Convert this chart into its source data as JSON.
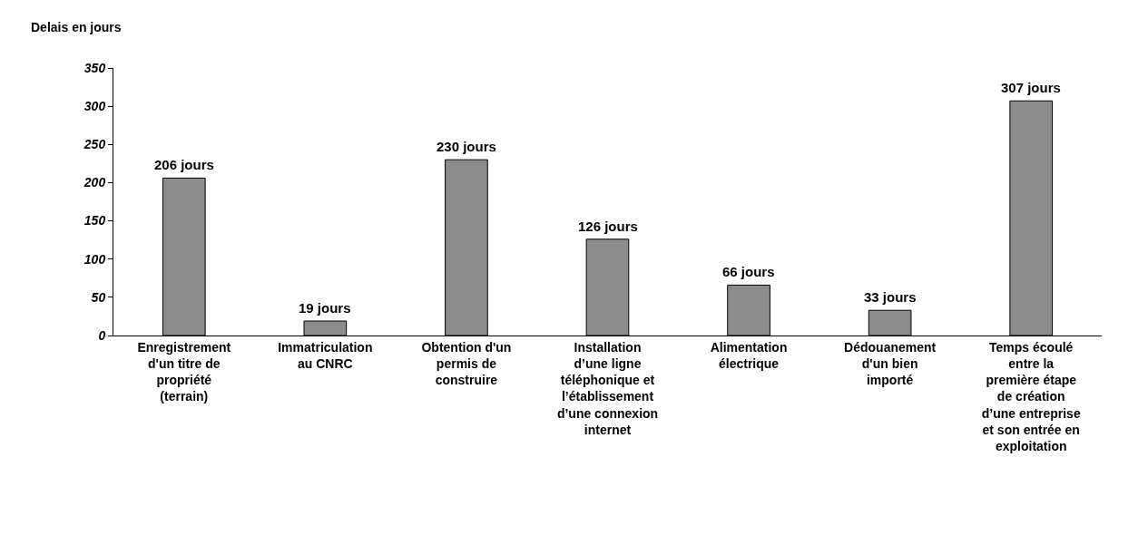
{
  "chart_data": {
    "type": "bar",
    "ylabel": "Delais en jours",
    "categories": [
      "Enregistrement d'un titre de propriété (terrain)",
      "Immatriculation au CNRC",
      "Obtention d'un permis de construire",
      "Installation d’une ligne téléphonique et l’établissement d’une connexion internet",
      "Alimentation électrique",
      "Dédouanement d'un bien importé",
      "Temps écoulé entre la première étape de création d’une entreprise et son entrée en exploitation"
    ],
    "values": [
      206,
      19,
      230,
      126,
      66,
      33,
      307
    ],
    "value_labels": [
      "206 jours",
      "19 jours",
      "230 jours",
      "126 jours",
      "66 jours",
      "33 jours",
      "307 jours"
    ],
    "color": "#8c8c8c",
    "ylim": [
      0,
      350
    ],
    "yticks": [
      0,
      50,
      100,
      150,
      200,
      250,
      300,
      350
    ],
    "grid": false
  }
}
